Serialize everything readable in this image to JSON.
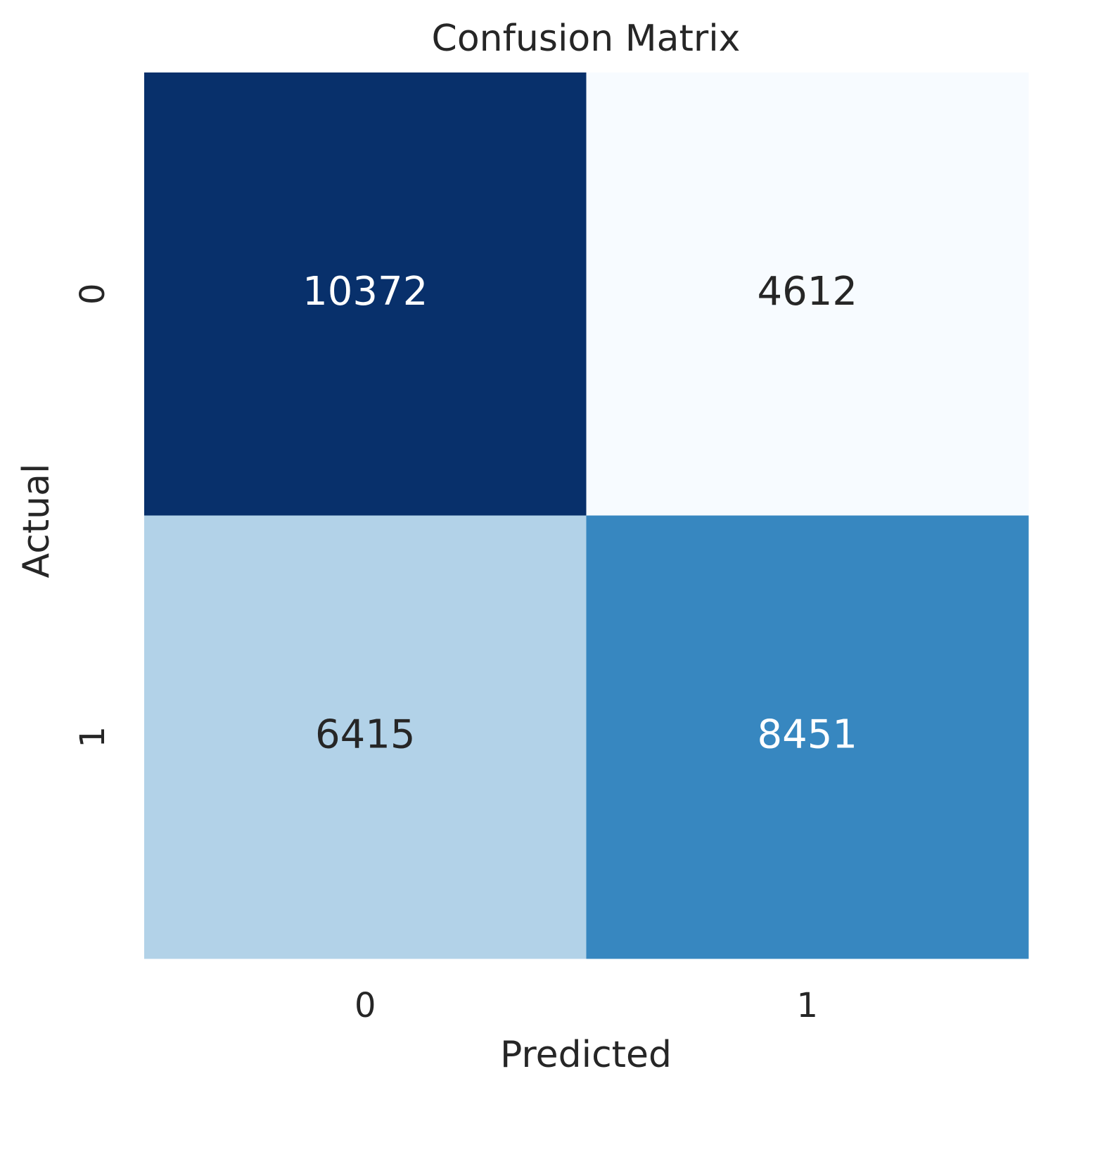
{
  "chart_data": {
    "type": "heatmap",
    "title": "Confusion Matrix",
    "x_label": "Predicted",
    "y_label": "Actual",
    "x_categories": [
      "0",
      "1"
    ],
    "y_categories": [
      "0",
      "1"
    ],
    "values": [
      [
        10372,
        4612
      ],
      [
        6415,
        8451
      ]
    ],
    "colormap": "Blues",
    "colorbar": false
  }
}
